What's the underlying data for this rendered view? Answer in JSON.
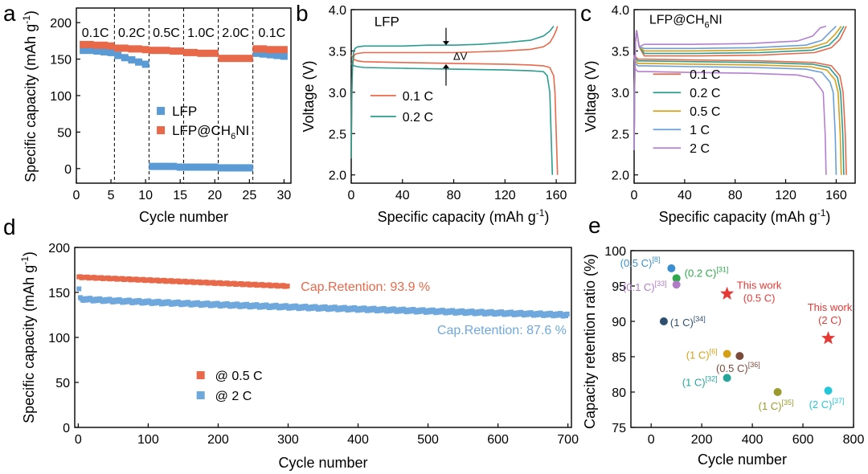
{
  "chart_data": [
    {
      "panel": "a",
      "type": "scatter",
      "xlabel": "Cycle number",
      "ylabel": "Specific capacity (mAh g",
      "ylabel_unit_sup": "-1",
      "ylabel_close": ")",
      "xlim": [
        0,
        31
      ],
      "ylim": [
        -20,
        220
      ],
      "xticks": [
        0,
        5,
        10,
        15,
        20,
        25,
        30
      ],
      "yticks": [
        0,
        50,
        100,
        150,
        200
      ],
      "rate_labels": [
        "0.1C",
        "0.2C",
        "0.5C",
        "1.0C",
        "2.0C",
        "0.1C"
      ],
      "rate_dividers": [
        5.5,
        10.5,
        15.5,
        20.5,
        25.5
      ],
      "legend": [
        {
          "name": "LFP",
          "sub": ""
        },
        {
          "name": "LFP@CH",
          "sub": "6",
          "tail": "NI"
        }
      ],
      "series": [
        {
          "name": "LFP",
          "color": "#5b9bd5",
          "x": [
            1,
            2,
            3,
            4,
            5,
            6,
            7,
            8,
            9,
            10,
            11,
            12,
            13,
            14,
            15,
            16,
            17,
            18,
            19,
            20,
            21,
            22,
            23,
            24,
            25,
            26,
            27,
            28,
            29,
            30
          ],
          "y": [
            162,
            162,
            161,
            160,
            159,
            155,
            152,
            149,
            146,
            143,
            3,
            3,
            3,
            3,
            2,
            2,
            2,
            2,
            2,
            2,
            1,
            1,
            1,
            1,
            1,
            158,
            157,
            156,
            155,
            154
          ]
        },
        {
          "name": "LFP@CH6NI",
          "color": "#e8694a",
          "x": [
            1,
            2,
            3,
            4,
            5,
            6,
            7,
            8,
            9,
            10,
            11,
            12,
            13,
            14,
            15,
            16,
            17,
            18,
            19,
            20,
            21,
            22,
            23,
            24,
            25,
            26,
            27,
            28,
            29,
            30
          ],
          "y": [
            170,
            170,
            169,
            169,
            168,
            165,
            165,
            164,
            164,
            163,
            162,
            162,
            162,
            161,
            161,
            159,
            159,
            158,
            158,
            158,
            151,
            151,
            151,
            151,
            151,
            164,
            164,
            163,
            163,
            163
          ]
        }
      ]
    },
    {
      "panel": "b",
      "type": "line",
      "title": "LFP",
      "xlabel": "Specific capacity (mAh g",
      "xlabel_sup": "-1",
      "xlabel_close": ")",
      "ylabel": "Voltage (V)",
      "xlim": [
        0,
        175
      ],
      "ylim": [
        1.9,
        4.0
      ],
      "xticks": [
        0,
        40,
        80,
        120,
        160
      ],
      "yticks": [
        "2.0",
        "2.5",
        "3.0",
        "3.5",
        "4.0"
      ],
      "annotation": "ΔV",
      "series": [
        {
          "name": "0.1 C",
          "color": "#e8694a",
          "charge": {
            "x": [
              0,
              0.5,
              1,
              2,
              3,
              5,
              10,
              20,
              40,
              60,
              80,
              100,
              120,
              140,
              150,
              155,
              158,
              160,
              161
            ],
            "y": [
              2.2,
              3.0,
              3.3,
              3.43,
              3.46,
              3.47,
              3.48,
              3.48,
              3.48,
              3.48,
              3.48,
              3.49,
              3.5,
              3.52,
              3.55,
              3.6,
              3.68,
              3.75,
              3.8
            ]
          },
          "discharge": {
            "x": [
              0,
              2,
              5,
              10,
              40,
              80,
              120,
              140,
              150,
              155,
              158,
              159,
              160,
              161
            ],
            "y": [
              3.45,
              3.4,
              3.38,
              3.37,
              3.36,
              3.35,
              3.34,
              3.33,
              3.32,
              3.3,
              3.2,
              3.0,
              2.5,
              2.0
            ]
          }
        },
        {
          "name": "0.2 C",
          "color": "#2a9d8f",
          "charge": {
            "x": [
              0,
              0.5,
              1,
              2,
              3,
              5,
              10,
              20,
              40,
              60,
              80,
              100,
              120,
              140,
              150,
              155,
              158
            ],
            "y": [
              2.2,
              3.0,
              3.35,
              3.5,
              3.53,
              3.55,
              3.56,
              3.56,
              3.56,
              3.57,
              3.57,
              3.58,
              3.6,
              3.63,
              3.68,
              3.74,
              3.8
            ]
          },
          "discharge": {
            "x": [
              0,
              2,
              5,
              10,
              40,
              80,
              120,
              140,
              150,
              153,
              155,
              156,
              157
            ],
            "y": [
              3.35,
              3.32,
              3.31,
              3.3,
              3.29,
              3.28,
              3.27,
              3.26,
              3.25,
              3.2,
              3.0,
              2.5,
              2.0
            ]
          }
        }
      ]
    },
    {
      "panel": "c",
      "type": "line",
      "title": "LFP@CH",
      "title_sub": "6",
      "title_tail": "NI",
      "xlabel": "Specific capacity (mAh g",
      "xlabel_sup": "-1",
      "xlabel_close": ")",
      "ylabel": "Voltage (V)",
      "xlim": [
        0,
        175
      ],
      "ylim": [
        1.9,
        4.0
      ],
      "xticks": [
        0,
        40,
        80,
        120,
        160
      ],
      "yticks": [
        "2.0",
        "2.5",
        "3.0",
        "3.5",
        "4.0"
      ],
      "series": [
        {
          "name": "0.1 C",
          "color": "#e8694a",
          "cap": 168,
          "vc": 3.44,
          "vd": 3.4
        },
        {
          "name": "0.2 C",
          "color": "#2a9d8f",
          "cap": 166,
          "vc": 3.47,
          "vd": 3.38
        },
        {
          "name": "0.5 C",
          "color": "#d4a017",
          "cap": 164,
          "vc": 3.5,
          "vd": 3.35
        },
        {
          "name": "1 C",
          "color": "#6b9fd8",
          "cap": 160,
          "vc": 3.53,
          "vd": 3.32
        },
        {
          "name": "2 C",
          "color": "#b57fd0",
          "cap": 152,
          "vc": 3.58,
          "vd": 3.25
        }
      ]
    },
    {
      "panel": "d",
      "type": "scatter",
      "xlabel": "Cycle number",
      "ylabel": "Specific capacity (mAh g",
      "ylabel_sup": "-1",
      "ylabel_close": ")",
      "xlim": [
        -5,
        705
      ],
      "ylim": [
        0,
        200
      ],
      "xticks": [
        0,
        100,
        200,
        300,
        400,
        500,
        600,
        700
      ],
      "yticks": [
        0,
        50,
        100,
        150,
        200
      ],
      "legend": [
        "@ 0.5 C",
        "@ 2 C"
      ],
      "series": [
        {
          "name": "@ 0.5 C",
          "color": "#e8694a",
          "cycles": 300,
          "start": 167,
          "end": 157
        },
        {
          "name": "@ 2 C",
          "color": "#6fa8dc",
          "cycles": 700,
          "first": 154,
          "start": 143,
          "end": 125
        }
      ],
      "annotations": [
        {
          "text": "Cap.Retention: 93.9 %",
          "color": "#e8694a"
        },
        {
          "text": "Cap.Retention: 87.6 %",
          "color": "#6fa8dc"
        }
      ]
    },
    {
      "panel": "e",
      "type": "scatter",
      "xlabel": "Cycle number",
      "ylabel": "Capacity retention ratio (%)",
      "xlim": [
        -80,
        800
      ],
      "ylim": [
        75,
        100
      ],
      "xticks": [
        0,
        200,
        400,
        600,
        800
      ],
      "yticks": [
        75,
        80,
        85,
        90,
        95,
        100
      ],
      "points": [
        {
          "x": 80,
          "y": 97.5,
          "color": "#3b8fd0",
          "label": "(0.5 C)",
          "ref": "[8]"
        },
        {
          "x": 100,
          "y": 96.1,
          "color": "#2ea84a",
          "label": "(0.2 C)",
          "ref": "[31]"
        },
        {
          "x": 100,
          "y": 95.2,
          "color": "#b07cc6",
          "label": "(0.1 C)",
          "ref": "[33]"
        },
        {
          "x": 50,
          "y": 90.0,
          "color": "#2f4f6f",
          "label": "(1 C)",
          "ref": "[34]"
        },
        {
          "x": 300,
          "y": 85.4,
          "color": "#d4a017",
          "label": "(1 C)",
          "ref": "[6]"
        },
        {
          "x": 350,
          "y": 85.1,
          "color": "#7a4a3a",
          "label": "(0.5 C)",
          "ref": "[36]"
        },
        {
          "x": 300,
          "y": 82.0,
          "color": "#26a69a",
          "label": "(1 C)",
          "ref": "[32]"
        },
        {
          "x": 500,
          "y": 80.0,
          "color": "#9a9a2a",
          "label": "(1 C)",
          "ref": "[35]"
        },
        {
          "x": 700,
          "y": 80.2,
          "color": "#26c6da",
          "label": "(2 C)",
          "ref": "[37]"
        }
      ],
      "this_work": [
        {
          "x": 300,
          "y": 93.9,
          "color": "#e53935",
          "line1": "This work",
          "line2": "(0.5 C)"
        },
        {
          "x": 700,
          "y": 87.6,
          "color": "#e53935",
          "line1": "This work",
          "line2": "(2 C)"
        }
      ]
    }
  ],
  "panel_letters": [
    "a",
    "b",
    "c",
    "d",
    "e"
  ]
}
